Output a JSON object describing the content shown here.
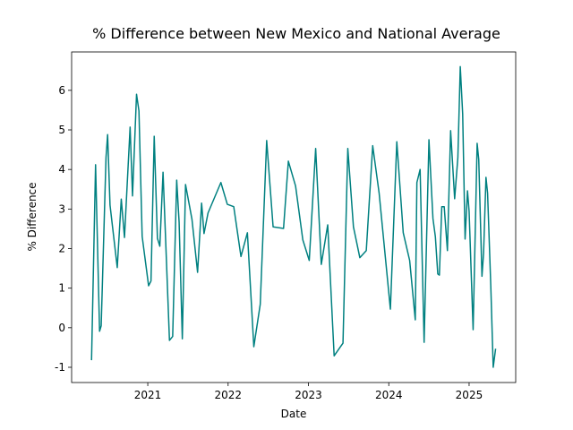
{
  "chart_data": {
    "type": "line",
    "title": "% Difference between New Mexico and National Average",
    "x_label": "Date",
    "y_label": "% Difference",
    "x": [
      2020.3,
      2020.35,
      2020.4,
      2020.42,
      2020.48,
      2020.5,
      2020.53,
      2020.62,
      2020.67,
      2020.71,
      2020.78,
      2020.81,
      2020.86,
      2020.89,
      2020.93,
      2021.01,
      2021.04,
      2021.08,
      2021.12,
      2021.15,
      2021.19,
      2021.27,
      2021.31,
      2021.36,
      2021.39,
      2021.43,
      2021.47,
      2021.55,
      2021.62,
      2021.67,
      2021.7,
      2021.75,
      2021.91,
      2021.99,
      2022.07,
      2022.16,
      2022.24,
      2022.32,
      2022.4,
      2022.48,
      2022.56,
      2022.69,
      2022.75,
      2022.84,
      2022.93,
      2023.01,
      2023.09,
      2023.16,
      2023.24,
      2023.32,
      2023.43,
      2023.49,
      2023.56,
      2023.64,
      2023.72,
      2023.8,
      2023.88,
      2024.02,
      2024.1,
      2024.18,
      2024.26,
      2024.33,
      2024.35,
      2024.39,
      2024.44,
      2024.5,
      2024.55,
      2024.58,
      2024.61,
      2024.63,
      2024.66,
      2024.69,
      2024.73,
      2024.77,
      2024.82,
      2024.86,
      2024.89,
      2024.92,
      2024.95,
      2024.98,
      2025.0,
      2025.05,
      2025.1,
      2025.12,
      2025.16,
      2025.18,
      2025.21,
      2025.23,
      2025.27,
      2025.3,
      2025.33
    ],
    "series": [
      {
        "name": "% Difference",
        "color": "#008080",
        "values": [
          -0.82,
          4.12,
          -0.09,
          0.05,
          4.3,
          4.88,
          3.1,
          1.52,
          3.25,
          2.28,
          5.07,
          3.33,
          5.9,
          5.48,
          2.31,
          1.06,
          1.18,
          4.84,
          2.26,
          2.06,
          3.93,
          -0.32,
          -0.22,
          3.73,
          2.67,
          -0.28,
          3.62,
          2.74,
          1.4,
          3.15,
          2.38,
          2.9,
          3.67,
          3.12,
          3.06,
          1.8,
          2.4,
          -0.48,
          0.59,
          4.73,
          2.55,
          2.51,
          4.21,
          3.58,
          2.22,
          1.7,
          4.53,
          1.6,
          2.6,
          -0.71,
          -0.39,
          4.53,
          2.55,
          1.77,
          1.95,
          4.6,
          3.4,
          0.47,
          4.7,
          2.4,
          1.7,
          0.2,
          3.67,
          4.0,
          -0.37,
          4.75,
          2.76,
          2.3,
          1.36,
          1.33,
          3.06,
          3.06,
          1.95,
          4.98,
          3.26,
          4.3,
          6.6,
          5.4,
          2.24,
          3.46,
          2.94,
          -0.05,
          4.66,
          4.25,
          1.3,
          1.88,
          3.8,
          3.4,
          1.05,
          -1.0,
          -0.53
        ]
      }
    ],
    "xlim": [
      2020.052,
      2025.58
    ],
    "xticks": [
      2021,
      2022,
      2023,
      2024,
      2025
    ],
    "ylim": [
      -1.385,
      6.97
    ],
    "yticks": [
      -1,
      0,
      1,
      2,
      3,
      4,
      5,
      6
    ],
    "grid": false
  }
}
